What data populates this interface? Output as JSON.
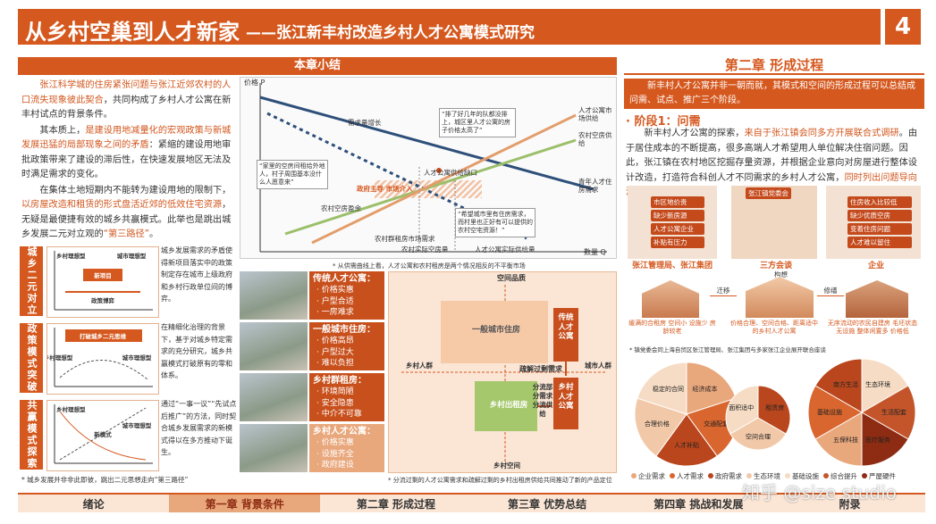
{
  "header": {
    "title": "从乡村空巢到人才新家",
    "subtitle": "——张江新丰村改造乡村人才公寓模式研究",
    "page": "4"
  },
  "summary": {
    "heading": "本章小结",
    "paragraphs": [
      [
        {
          "text": "张江科学城的住房紧张问题与张江近郊农村的人口流失现象彼此契合",
          "highlight": true
        },
        {
          "text": "，共同构成了乡村人才公寓在新丰村试点的背景条件。",
          "highlight": false
        }
      ],
      [
        {
          "text": "其本质上，",
          "highlight": false
        },
        {
          "text": "是建设用地减量化的宏观政策与新城发展迅猛的局部现象之间的矛盾",
          "highlight": true
        },
        {
          "text": "：紧缩的建设用地审批政策带来了建设的滞后性，在快速发展地区无法及时满足需求的变化。",
          "highlight": false
        }
      ],
      [
        {
          "text": "在集体土地短期内不能转为建设用地的限制下，",
          "highlight": false
        },
        {
          "text": "以房屋改造和租赁的形式盘活近郊的低效住宅资源",
          "highlight": true
        },
        {
          "text": "，无疑是最便捷有效的城乡共赢模式。此举也是跳出城乡发展二元对立观的",
          "highlight": false
        },
        {
          "text": "“第三路径”",
          "highlight": true
        },
        {
          "text": "。",
          "highlight": false
        }
      ]
    ]
  },
  "models": [
    {
      "label": "城乡二元对立",
      "text": "城乡发展需求的矛盾使得新项目落实中的政策制定存在城市上级政府和乡村行政单位间的博弈。",
      "diagram": [
        "乡村理想型",
        "新项目",
        "城市理想型",
        "政策博弈"
      ]
    },
    {
      "label": "政策模式突破",
      "text": "在精细化治理的背景下，基于对城乡特定需求的充分研究，城乡共赢模式打破原有的零和体系。",
      "diagram": [
        "打破城乡二元思维",
        "乡村理想型",
        "城市理想型"
      ]
    },
    {
      "label": "共赢模式探索",
      "text": "通过“一事一议”“先试点后推广”的方法，同时契合城乡发展需求的新模式得以在多方推动下诞生。",
      "diagram": [
        "乡村理想型",
        "新模式",
        "城市理想型"
      ]
    }
  ],
  "models_note": "* 城乡发展并非非此即彼，跳出二元思想走向“第三路径”",
  "supply_chart": {
    "y_axis": "价格 P",
    "x_axis": "数量 Q",
    "labels": [
      "需求量增长",
      "人才公寓市场供给",
      "农村空房供给",
      "青年人才住房需求",
      "人才公寓供给缺口",
      "农村空房盈余",
      "农村群租房市场需求",
      "农村实际空房量",
      "人才公寓实际供给量",
      "政府主导 市场介入"
    ],
    "quotes": [
      "“排了好几年的队都没排上，城区里人才公寓的房子价格太高了”",
      "“家里的空房间租给外地人，村子周围基本没什么人愿意来”",
      "“希望城市里有住房需求，而村里也正好有可以提供的农村空宅资源！”"
    ],
    "note": "* 从供需曲线上看，人才公寓和农村租房是两个情况相反的不平衡市场"
  },
  "housing_types": [
    {
      "name": "传统人才公寓：",
      "features": [
        "· 价格实惠",
        "· 户型合适",
        "· 一房难求"
      ]
    },
    {
      "name": "一般城市住房：",
      "features": [
        "· 价格高昂",
        "· 户型过大",
        "· 难以负担"
      ]
    },
    {
      "name": "乡村群租房：",
      "features": [
        "· 环境简陋",
        "· 安全隐患",
        "· 中介不可靠"
      ]
    },
    {
      "name": "乡村人才公寓：",
      "features": [
        "· 价格实惠",
        "· 设施齐全",
        "· 政府建设"
      ]
    }
  ],
  "positioning": {
    "labels": [
      "空间品质",
      "城市人群",
      "乡村人群",
      "乡村空间",
      "一般城市住房",
      "传统人才公寓",
      "乡村出租房",
      "乡村人才公寓",
      "疏解过剩需求",
      "分流部分需求",
      "分流供给"
    ],
    "note": "* 分流过剩的人才公寓需求和疏解过剩的乡村出租房供给共同推动了新的产品定位"
  },
  "chapter2": {
    "title": "第二章 形成过程",
    "intro": "新丰村人才公寓并非一朝而就，其模式和空间的形成过程可以总结成问需、试点、推广三个阶段。",
    "stage": "· 阶段1：问需",
    "paragraph": [
      {
        "text": "新丰村人才公寓的探索，",
        "highlight": false
      },
      {
        "text": "来自于张江镇会同多方开展联合式调研",
        "highlight": true
      },
      {
        "text": "。由于居住成本的不断提高，很多高端人才希望用人单位解决住宿问题。因此，张江镇在农村地区挖掘存量资源，并根据企业意向对房屋进行整体设计改造，打造符合科创人才不同需求的乡村人才公寓，",
        "highlight": false
      },
      {
        "text": "同时列出问题导向清单",
        "highlight": true
      },
      {
        "text": "。",
        "highlight": false
      }
    ],
    "scene": {
      "tags_left": [
        "市区地价贵",
        "缺少新房源",
        "人才公寓企业",
        "补贴有压力"
      ],
      "org_center": "张江镇党委会",
      "tags_right": [
        "住房收入比较低",
        "缺少优质空房",
        "变着住房问题",
        "人才难以留住"
      ],
      "actors": [
        "张江管理局、张江集团",
        "三方会谈",
        "企业"
      ],
      "idea": "构想",
      "moves": [
        "迁移",
        "修缮"
      ],
      "descriptions": [
        "缓满的合租房 空间小 设施少 房龄较老",
        "价格合理、空间合格、距离适中的乡村人才公寓",
        "无序流动的农民自建房 毛坯状态 无设施 整体闲置多 价格低"
      ],
      "note": "* 镇党委会同上海自贸区张江管理局、张江集团与多家张江企业展开联合座谈"
    },
    "pie_labels": [
      [
        "经济成本",
        "交通配套",
        "人才补贴",
        "合理价格",
        "稳定的合同"
      ],
      [
        "租赁房",
        "空间合理",
        "面积适中"
      ],
      [
        "生态环境",
        "生活配套",
        "医疗服务",
        "五保科技",
        "基础设施",
        "南方生活"
      ]
    ],
    "legend": [
      {
        "name": "企业需求",
        "color": "#e9a77c"
      },
      {
        "name": "人才需求",
        "color": "#d9662e"
      },
      {
        "name": "政府需求",
        "color": "#b9461c"
      },
      {
        "name": "生态环境",
        "color": "#f2c9a8"
      },
      {
        "name": "基础设施",
        "color": "#f6dcc4"
      },
      {
        "name": "综合提升",
        "color": "#c4552a"
      },
      {
        "name": "严屋硬件",
        "color": "#8d2c12"
      }
    ]
  },
  "nav": {
    "items": [
      "绪论",
      "第一章 背景条件",
      "第二章 形成过程",
      "第三章 优势总结",
      "第四章 挑战和发展",
      "附录"
    ],
    "active": 1
  },
  "watermark": "知乎 @size studio"
}
